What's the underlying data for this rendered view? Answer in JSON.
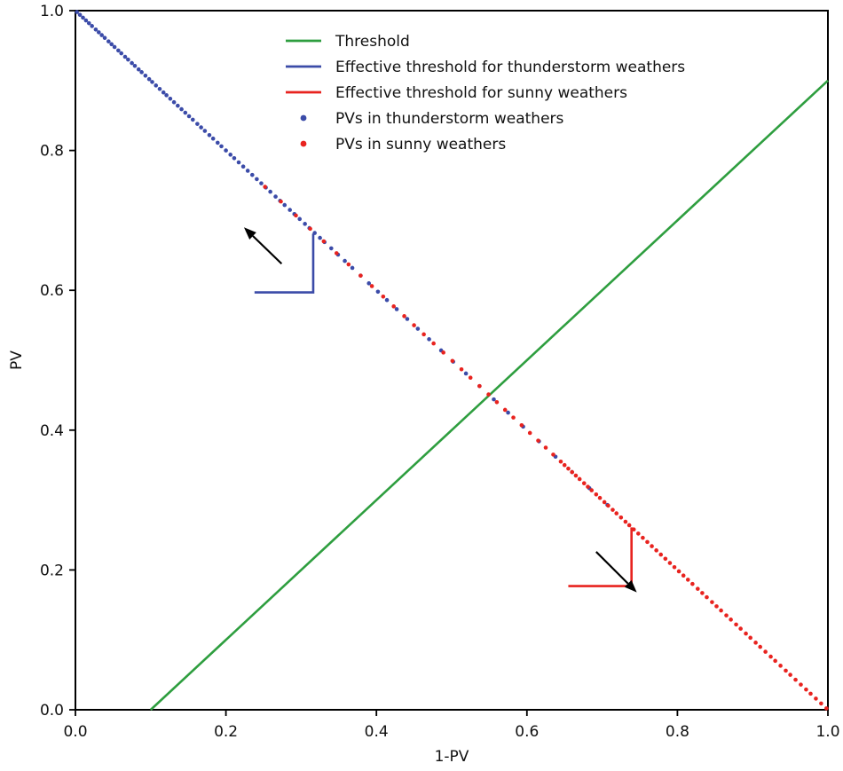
{
  "figure": {
    "background": "#ffffff"
  },
  "chart_data": {
    "type": "scatter",
    "title": "",
    "xlabel": "1-PV",
    "ylabel": "PV",
    "xlim": [
      0.0,
      1.0
    ],
    "ylim": [
      0.0,
      1.0
    ],
    "xticks": [
      "0.0",
      "0.2",
      "0.4",
      "0.6",
      "0.8",
      "1.0"
    ],
    "yticks": [
      "0.0",
      "0.2",
      "0.4",
      "0.6",
      "0.8",
      "1.0"
    ],
    "grid": false,
    "legend": {
      "frame": false,
      "position": "upper center-left",
      "entries": [
        {
          "label": "Threshold",
          "swatch": "line",
          "color": "#2e9e3f"
        },
        {
          "label": "Effective threshold for thunderstorm weathers",
          "swatch": "line",
          "color": "#3b4ba8"
        },
        {
          "label": "Effective threshold for sunny weathers",
          "swatch": "line",
          "color": "#e8231f"
        },
        {
          "label": "PVs in thunderstorm weathers",
          "swatch": "dot",
          "color": "#3b4ba8"
        },
        {
          "label": "PVs in sunny weathers",
          "swatch": "dot",
          "color": "#e8231f"
        }
      ]
    },
    "series": [
      {
        "name": "Threshold",
        "kind": "line",
        "color": "#2e9e3f",
        "width": 2.6,
        "points": [
          [
            0.1,
            0.0
          ],
          [
            1.0,
            0.9
          ]
        ]
      },
      {
        "name": "Effective threshold for thunderstorm weathers",
        "kind": "line",
        "color": "#3b4ba8",
        "width": 2.6,
        "points": [
          [
            0.238,
            0.597
          ],
          [
            0.316,
            0.597
          ],
          [
            0.316,
            0.681
          ]
        ]
      },
      {
        "name": "Effective threshold for sunny weathers",
        "kind": "line",
        "color": "#e8231f",
        "width": 2.6,
        "points": [
          [
            0.655,
            0.177
          ],
          [
            0.739,
            0.177
          ],
          [
            0.739,
            0.261
          ]
        ]
      },
      {
        "name": "PVs in thunderstorm weathers",
        "kind": "scatter",
        "color": "#3b4ba8",
        "marker_r": 2.3,
        "y_rule": "y = 1 - x",
        "x": [
          0.002,
          0.006,
          0.01,
          0.014,
          0.018,
          0.022,
          0.027,
          0.031,
          0.035,
          0.039,
          0.044,
          0.048,
          0.052,
          0.057,
          0.061,
          0.066,
          0.07,
          0.075,
          0.079,
          0.084,
          0.088,
          0.093,
          0.098,
          0.102,
          0.107,
          0.112,
          0.117,
          0.121,
          0.126,
          0.131,
          0.136,
          0.141,
          0.146,
          0.151,
          0.156,
          0.162,
          0.167,
          0.172,
          0.178,
          0.183,
          0.189,
          0.194,
          0.2,
          0.206,
          0.211,
          0.217,
          0.223,
          0.229,
          0.235,
          0.241,
          0.247,
          0.253,
          0.259,
          0.266,
          0.272,
          0.278,
          0.285,
          0.291,
          0.298,
          0.305,
          0.311,
          0.318,
          0.325,
          0.331,
          0.34,
          0.349,
          0.358,
          0.368,
          0.379,
          0.39,
          0.402,
          0.414,
          0.427,
          0.441,
          0.455,
          0.47,
          0.486,
          0.502,
          0.519,
          0.537,
          0.556,
          0.575,
          0.595,
          0.616,
          0.638,
          0.66,
          0.683,
          0.707
        ]
      },
      {
        "name": "PVs in sunny weathers",
        "kind": "scatter",
        "color": "#e8231f",
        "marker_r": 2.3,
        "y_rule": "y = 1 - x",
        "x": [
          0.252,
          0.273,
          0.293,
          0.312,
          0.33,
          0.347,
          0.363,
          0.379,
          0.394,
          0.409,
          0.423,
          0.437,
          0.45,
          0.463,
          0.476,
          0.489,
          0.501,
          0.513,
          0.525,
          0.537,
          0.549,
          0.56,
          0.571,
          0.582,
          0.593,
          0.604,
          0.615,
          0.625,
          0.635,
          0.645,
          0.65,
          0.655,
          0.66,
          0.665,
          0.67,
          0.676,
          0.681,
          0.686,
          0.692,
          0.697,
          0.703,
          0.708,
          0.714,
          0.719,
          0.725,
          0.731,
          0.736,
          0.742,
          0.748,
          0.754,
          0.76,
          0.766,
          0.772,
          0.778,
          0.784,
          0.79,
          0.796,
          0.802,
          0.808,
          0.814,
          0.82,
          0.827,
          0.833,
          0.839,
          0.846,
          0.852,
          0.858,
          0.865,
          0.871,
          0.878,
          0.884,
          0.891,
          0.897,
          0.904,
          0.91,
          0.917,
          0.924,
          0.93,
          0.937,
          0.944,
          0.95,
          0.957,
          0.964,
          0.971,
          0.977,
          0.984,
          0.991,
          0.998
        ]
      }
    ],
    "annotations": [
      {
        "type": "arrow",
        "from": [
          0.274,
          0.638
        ],
        "to": [
          0.224,
          0.69
        ],
        "color": "#000000"
      },
      {
        "type": "arrow",
        "from": [
          0.692,
          0.226
        ],
        "to": [
          0.746,
          0.168
        ],
        "color": "#000000"
      }
    ]
  }
}
